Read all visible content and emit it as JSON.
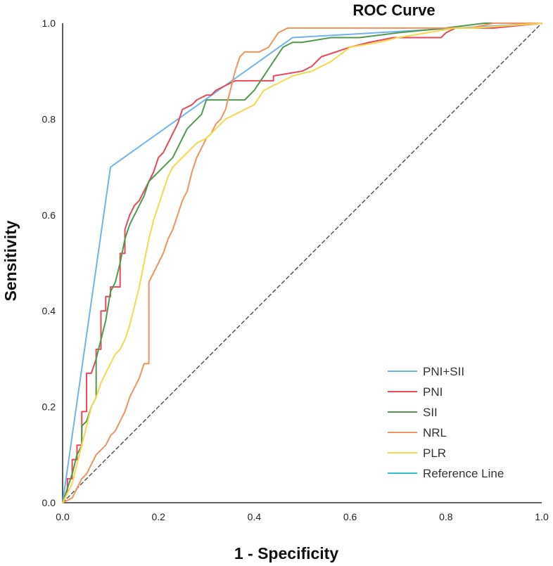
{
  "chart_data": {
    "type": "line",
    "title": "ROC Curve",
    "xlabel": "1 - Specificity",
    "ylabel": "Sensitivity",
    "xlim": [
      0,
      1
    ],
    "ylim": [
      0,
      1
    ],
    "xticks": [
      "0.0",
      "0.2",
      "0.4",
      "0.6",
      "0.8",
      "1.0"
    ],
    "yticks": [
      "0.0",
      "0.2",
      "0.4",
      "0.6",
      "0.8",
      "1.0"
    ],
    "grid": false,
    "legend_position": "bottom-right",
    "series": [
      {
        "name": "PNI+SII",
        "color": "#6db4f0",
        "x": [
          0.0,
          0.1,
          0.48,
          1.0
        ],
        "y": [
          0.0,
          0.7,
          0.97,
          1.0
        ]
      },
      {
        "name": "PNI",
        "color": "#e8485a",
        "x": [
          0.0,
          0.01,
          0.01,
          0.02,
          0.02,
          0.03,
          0.03,
          0.04,
          0.04,
          0.05,
          0.05,
          0.06,
          0.07,
          0.07,
          0.08,
          0.08,
          0.09,
          0.09,
          0.1,
          0.1,
          0.12,
          0.12,
          0.13,
          0.13,
          0.14,
          0.15,
          0.16,
          0.17,
          0.18,
          0.19,
          0.2,
          0.21,
          0.22,
          0.23,
          0.24,
          0.25,
          0.27,
          0.28,
          0.3,
          0.31,
          0.32,
          0.34,
          0.36,
          0.44,
          0.44,
          0.5,
          0.52,
          0.54,
          0.6,
          0.64,
          0.69,
          0.79,
          0.8,
          0.82,
          0.9,
          1.0
        ],
        "y": [
          0.0,
          0.02,
          0.05,
          0.05,
          0.09,
          0.09,
          0.12,
          0.12,
          0.19,
          0.19,
          0.27,
          0.27,
          0.3,
          0.32,
          0.32,
          0.4,
          0.4,
          0.43,
          0.43,
          0.45,
          0.45,
          0.52,
          0.52,
          0.57,
          0.6,
          0.62,
          0.63,
          0.65,
          0.67,
          0.69,
          0.72,
          0.73,
          0.75,
          0.77,
          0.79,
          0.82,
          0.83,
          0.84,
          0.85,
          0.85,
          0.86,
          0.87,
          0.88,
          0.88,
          0.89,
          0.9,
          0.91,
          0.93,
          0.95,
          0.96,
          0.97,
          0.97,
          0.98,
          0.99,
          0.99,
          1.0
        ]
      },
      {
        "name": "SII",
        "color": "#4f9a4f",
        "x": [
          0.0,
          0.01,
          0.02,
          0.03,
          0.04,
          0.04,
          0.05,
          0.06,
          0.07,
          0.07,
          0.08,
          0.09,
          0.1,
          0.11,
          0.12,
          0.13,
          0.14,
          0.15,
          0.16,
          0.17,
          0.18,
          0.19,
          0.2,
          0.21,
          0.22,
          0.23,
          0.24,
          0.25,
          0.26,
          0.28,
          0.29,
          0.3,
          0.32,
          0.38,
          0.4,
          0.44,
          0.46,
          0.48,
          0.5,
          0.56,
          0.62,
          0.7,
          0.8,
          0.88,
          1.0
        ],
        "y": [
          0.0,
          0.03,
          0.06,
          0.1,
          0.12,
          0.16,
          0.17,
          0.2,
          0.22,
          0.3,
          0.34,
          0.38,
          0.44,
          0.46,
          0.5,
          0.55,
          0.58,
          0.6,
          0.62,
          0.64,
          0.67,
          0.68,
          0.69,
          0.7,
          0.71,
          0.72,
          0.74,
          0.76,
          0.78,
          0.8,
          0.81,
          0.84,
          0.84,
          0.84,
          0.86,
          0.92,
          0.95,
          0.96,
          0.96,
          0.97,
          0.97,
          0.98,
          0.99,
          1.0,
          1.0
        ]
      },
      {
        "name": "NRL",
        "color": "#f4915e",
        "x": [
          0.0,
          0.02,
          0.03,
          0.04,
          0.05,
          0.06,
          0.07,
          0.08,
          0.09,
          0.1,
          0.11,
          0.12,
          0.13,
          0.14,
          0.15,
          0.16,
          0.17,
          0.18,
          0.18,
          0.19,
          0.2,
          0.21,
          0.22,
          0.23,
          0.24,
          0.25,
          0.26,
          0.27,
          0.28,
          0.29,
          0.3,
          0.31,
          0.32,
          0.33,
          0.34,
          0.35,
          0.36,
          0.37,
          0.38,
          0.39,
          0.4,
          0.41,
          0.43,
          0.45,
          0.47,
          0.55,
          0.7,
          0.85,
          0.9,
          1.0
        ],
        "y": [
          0.0,
          0.01,
          0.03,
          0.05,
          0.06,
          0.08,
          0.1,
          0.11,
          0.12,
          0.14,
          0.15,
          0.17,
          0.19,
          0.22,
          0.24,
          0.26,
          0.29,
          0.29,
          0.46,
          0.48,
          0.5,
          0.52,
          0.55,
          0.57,
          0.6,
          0.63,
          0.65,
          0.69,
          0.72,
          0.74,
          0.76,
          0.77,
          0.79,
          0.8,
          0.82,
          0.86,
          0.9,
          0.93,
          0.94,
          0.94,
          0.94,
          0.94,
          0.95,
          0.98,
          0.99,
          0.99,
          0.99,
          0.99,
          1.0,
          1.0
        ]
      },
      {
        "name": "PLR",
        "color": "#f5d94a",
        "x": [
          0.0,
          0.02,
          0.03,
          0.04,
          0.05,
          0.06,
          0.07,
          0.08,
          0.09,
          0.1,
          0.11,
          0.12,
          0.13,
          0.14,
          0.15,
          0.16,
          0.17,
          0.18,
          0.19,
          0.2,
          0.21,
          0.22,
          0.23,
          0.24,
          0.25,
          0.26,
          0.28,
          0.3,
          0.32,
          0.34,
          0.36,
          0.38,
          0.4,
          0.42,
          0.46,
          0.48,
          0.52,
          0.56,
          0.6,
          0.66,
          0.7,
          0.76,
          0.82,
          0.86,
          1.0
        ],
        "y": [
          0.0,
          0.04,
          0.08,
          0.12,
          0.16,
          0.2,
          0.22,
          0.25,
          0.27,
          0.29,
          0.31,
          0.32,
          0.34,
          0.37,
          0.41,
          0.45,
          0.5,
          0.55,
          0.59,
          0.62,
          0.65,
          0.68,
          0.7,
          0.71,
          0.72,
          0.73,
          0.75,
          0.76,
          0.78,
          0.8,
          0.81,
          0.82,
          0.83,
          0.86,
          0.88,
          0.89,
          0.9,
          0.92,
          0.95,
          0.96,
          0.97,
          0.98,
          0.99,
          0.99,
          1.0
        ]
      },
      {
        "name": "Reference Line",
        "color": "#2ec4d4",
        "x": [
          0.0,
          1.0
        ],
        "y": [
          0.0,
          1.0
        ]
      }
    ]
  }
}
